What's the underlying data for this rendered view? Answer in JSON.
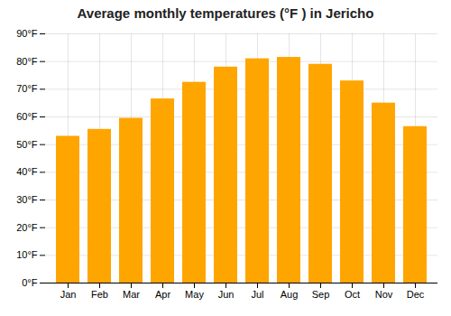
{
  "chart_data": {
    "type": "bar",
    "title": "Average monthly temperatures (°F ) in Jericho",
    "categories": [
      "Jan",
      "Feb",
      "Mar",
      "Apr",
      "May",
      "Jun",
      "Jul",
      "Aug",
      "Sep",
      "Oct",
      "Nov",
      "Dec"
    ],
    "values": [
      53,
      55.5,
      59.5,
      66.5,
      72.5,
      78,
      81,
      81.5,
      79,
      73,
      65,
      56.5
    ],
    "color": "#FFA500",
    "ylim": [
      0,
      90
    ],
    "yticks": [
      {
        "value": 0,
        "label": "0°F"
      },
      {
        "value": 10,
        "label": "10°F"
      },
      {
        "value": 20,
        "label": "20°F"
      },
      {
        "value": 30,
        "label": "30°F"
      },
      {
        "value": 40,
        "label": "40°F"
      },
      {
        "value": 50,
        "label": "50°F"
      },
      {
        "value": 60,
        "label": "60°F"
      },
      {
        "value": 70,
        "label": "70°F"
      },
      {
        "value": 80,
        "label": "80°F"
      },
      {
        "value": 90,
        "label": "90°F"
      }
    ],
    "grid": true
  }
}
